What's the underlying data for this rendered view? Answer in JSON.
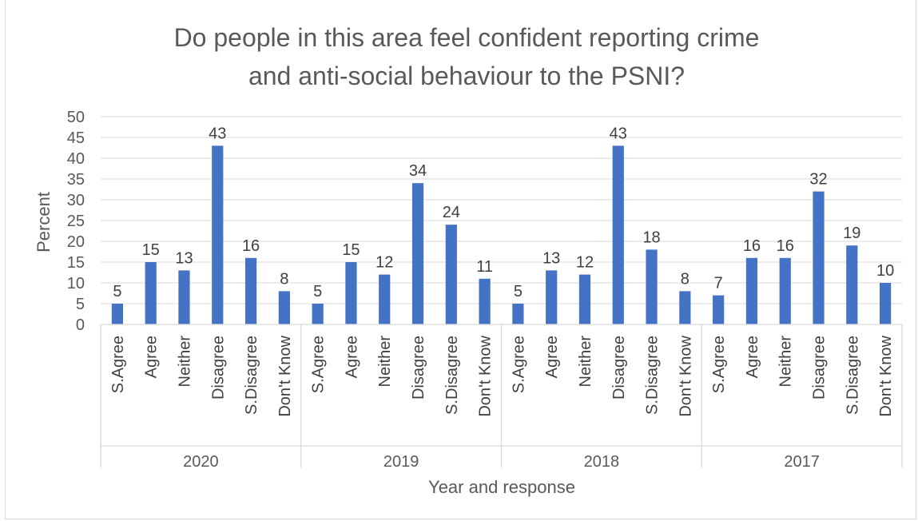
{
  "chart_data": {
    "type": "bar",
    "title_lines": [
      "Do people in this area feel confident reporting crime",
      "and anti-social behaviour to the PSNI?"
    ],
    "xlabel": "Year and response",
    "ylabel": "Percent",
    "ylim": [
      0,
      50
    ],
    "y_ticks": [
      "0",
      "5",
      "10",
      "15",
      "20",
      "25",
      "30",
      "35",
      "40",
      "45",
      "50"
    ],
    "grid": true,
    "bar_color": "#4472c4",
    "groups": [
      {
        "name": "2020",
        "categories": [
          "S.Agree",
          "Agree",
          "Neither",
          "Disagree",
          "S.Disagree",
          "Don't Know"
        ],
        "values": [
          5,
          15,
          13,
          43,
          16,
          8
        ]
      },
      {
        "name": "2019",
        "categories": [
          "S.Agree",
          "Agree",
          "Neither",
          "Disagree",
          "S.Disagree",
          "Don't Know"
        ],
        "values": [
          5,
          15,
          12,
          34,
          24,
          11
        ]
      },
      {
        "name": "2018",
        "categories": [
          "S.Agree",
          "Agree",
          "Neither",
          "Disagree",
          "S.Disagree",
          "Don't Know"
        ],
        "values": [
          5,
          13,
          12,
          43,
          18,
          8
        ]
      },
      {
        "name": "2017",
        "categories": [
          "S.Agree",
          "Agree",
          "Neither",
          "Disagree",
          "S.Disagree",
          "Don't Know"
        ],
        "values": [
          7,
          16,
          16,
          32,
          19,
          10
        ]
      }
    ]
  }
}
